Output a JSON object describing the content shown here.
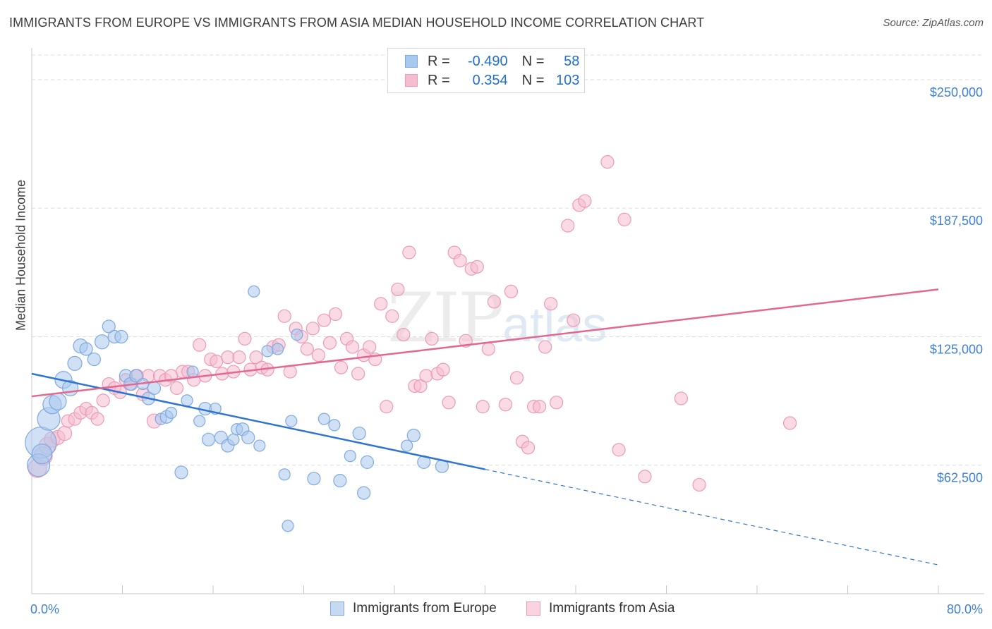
{
  "title": "IMMIGRANTS FROM EUROPE VS IMMIGRANTS FROM ASIA MEDIAN HOUSEHOLD INCOME CORRELATION CHART",
  "source": "Source: ZipAtlas.com",
  "watermark": {
    "zip": "ZIP",
    "atlas": "atlas"
  },
  "legend": {
    "rows": [
      {
        "r_label": "R =",
        "r_value": "-0.490",
        "n_label": "N =",
        "n_value": "58"
      },
      {
        "r_label": "R =",
        "r_value": "0.354",
        "n_label": "N =",
        "n_value": "103"
      }
    ]
  },
  "bottom_legend": [
    "Immigrants from Europe",
    "Immigrants from Asia"
  ],
  "colors": {
    "blue_fill": "#a9c8ee",
    "blue_stroke": "#7fa9de",
    "blue_line": "#2f74d0",
    "pink_fill": "#f6bcd0",
    "pink_stroke": "#ec9ab7",
    "pink_line": "#e3678f",
    "tick_label": "#3f7fd4",
    "grid": "#dddddd"
  },
  "chart_data": {
    "type": "scatter",
    "title": "IMMIGRANTS FROM EUROPE VS IMMIGRANTS FROM ASIA MEDIAN HOUSEHOLD INCOME CORRELATION CHART",
    "xlabel": "",
    "ylabel": "Median Household Income",
    "xlim": [
      0,
      80
    ],
    "ylim": [
      0,
      262000
    ],
    "x_tick_labels": [
      "0.0%",
      "80.0%"
    ],
    "y_ticks": [
      62500,
      125000,
      187500,
      250000
    ],
    "y_tick_labels": [
      "$62,500",
      "$125,000",
      "$187,500",
      "$250,000"
    ],
    "series": [
      {
        "name": "Immigrants from Europe",
        "r": -0.49,
        "n": 58,
        "trend": {
          "x0": 0,
          "y0": 107000,
          "x1": 40,
          "y1": 60500,
          "dash_to_x": 80,
          "dash_to_y": 14000
        },
        "points": [
          [
            0.8,
            73500,
            22
          ],
          [
            0.6,
            62500,
            16
          ],
          [
            0.9,
            68000,
            14
          ],
          [
            1.5,
            85000,
            16
          ],
          [
            1.8,
            92000,
            13
          ],
          [
            2.3,
            93500,
            12
          ],
          [
            2.8,
            104000,
            12
          ],
          [
            3.4,
            100000,
            11
          ],
          [
            3.8,
            112000,
            10
          ],
          [
            4.3,
            120500,
            10
          ],
          [
            4.8,
            119000,
            9
          ],
          [
            5.5,
            114000,
            9
          ],
          [
            6.2,
            122500,
            10
          ],
          [
            6.8,
            130000,
            9
          ],
          [
            7.3,
            125000,
            9
          ],
          [
            7.9,
            125000,
            9
          ],
          [
            8.3,
            106000,
            9
          ],
          [
            8.7,
            102000,
            9
          ],
          [
            9.2,
            106000,
            9
          ],
          [
            9.8,
            102000,
            8
          ],
          [
            10.3,
            95000,
            9
          ],
          [
            10.8,
            100000,
            9
          ],
          [
            11.4,
            85000,
            8
          ],
          [
            11.9,
            86000,
            9
          ],
          [
            12.3,
            88000,
            8
          ],
          [
            13.2,
            59000,
            9
          ],
          [
            13.7,
            94000,
            8
          ],
          [
            14.2,
            108000,
            8
          ],
          [
            14.8,
            84000,
            8
          ],
          [
            15.3,
            90000,
            9
          ],
          [
            15.6,
            75000,
            9
          ],
          [
            16.2,
            90000,
            8
          ],
          [
            16.7,
            76000,
            9
          ],
          [
            17.3,
            72000,
            9
          ],
          [
            17.8,
            75000,
            8
          ],
          [
            18.1,
            80000,
            8
          ],
          [
            18.6,
            80000,
            9
          ],
          [
            19.1,
            76000,
            9
          ],
          [
            19.6,
            147000,
            8
          ],
          [
            20.1,
            72000,
            8
          ],
          [
            20.8,
            118000,
            8
          ],
          [
            21.7,
            119000,
            8
          ],
          [
            22.3,
            58000,
            8
          ],
          [
            22.6,
            33000,
            8
          ],
          [
            22.9,
            84000,
            8
          ],
          [
            23.4,
            126000,
            8
          ],
          [
            24.9,
            56000,
            9
          ],
          [
            25.8,
            85000,
            8
          ],
          [
            26.7,
            82000,
            8
          ],
          [
            27.2,
            55000,
            9
          ],
          [
            28.1,
            67000,
            8
          ],
          [
            28.9,
            78000,
            9
          ],
          [
            29.3,
            49000,
            9
          ],
          [
            29.6,
            64000,
            9
          ],
          [
            33.1,
            72000,
            8
          ],
          [
            33.7,
            77000,
            9
          ],
          [
            34.6,
            64000,
            9
          ],
          [
            36.2,
            62000,
            9
          ]
        ]
      },
      {
        "name": "Immigrants from Asia",
        "r": 0.354,
        "n": 103,
        "trend": {
          "x0": 0,
          "y0": 96000,
          "x1": 80,
          "y1": 148000
        },
        "points": [
          [
            0.5,
            61000,
            13
          ],
          [
            1.0,
            67000,
            13
          ],
          [
            1.4,
            72000,
            12
          ],
          [
            1.8,
            75000,
            11
          ],
          [
            2.3,
            76000,
            10
          ],
          [
            2.9,
            78000,
            10
          ],
          [
            3.2,
            84000,
            9
          ],
          [
            3.8,
            85000,
            9
          ],
          [
            4.3,
            88000,
            9
          ],
          [
            4.8,
            90000,
            9
          ],
          [
            5.3,
            88000,
            9
          ],
          [
            5.8,
            85000,
            9
          ],
          [
            6.3,
            94000,
            9
          ],
          [
            6.8,
            102000,
            9
          ],
          [
            7.3,
            100000,
            9
          ],
          [
            7.8,
            98000,
            9
          ],
          [
            8.3,
            104000,
            9
          ],
          [
            8.8,
            102000,
            9
          ],
          [
            9.3,
            106000,
            9
          ],
          [
            9.8,
            97000,
            9
          ],
          [
            10.3,
            106000,
            9
          ],
          [
            10.8,
            84000,
            10
          ],
          [
            11.3,
            106000,
            9
          ],
          [
            11.8,
            104000,
            9
          ],
          [
            12.3,
            106000,
            9
          ],
          [
            12.8,
            100000,
            9
          ],
          [
            13.3,
            108000,
            9
          ],
          [
            13.8,
            108000,
            9
          ],
          [
            14.3,
            104000,
            9
          ],
          [
            14.8,
            121000,
            9
          ],
          [
            15.3,
            106000,
            9
          ],
          [
            15.8,
            114000,
            9
          ],
          [
            16.3,
            113000,
            9
          ],
          [
            16.8,
            107000,
            9
          ],
          [
            17.3,
            115000,
            9
          ],
          [
            17.8,
            108000,
            9
          ],
          [
            18.3,
            115000,
            9
          ],
          [
            18.8,
            124000,
            9
          ],
          [
            19.3,
            109000,
            9
          ],
          [
            19.8,
            115000,
            9
          ],
          [
            20.3,
            110000,
            9
          ],
          [
            20.8,
            109000,
            9
          ],
          [
            21.3,
            120000,
            9
          ],
          [
            21.8,
            121000,
            9
          ],
          [
            22.3,
            135000,
            9
          ],
          [
            22.8,
            108000,
            9
          ],
          [
            23.3,
            129000,
            9
          ],
          [
            23.8,
            125000,
            9
          ],
          [
            24.3,
            119000,
            9
          ],
          [
            24.8,
            129000,
            9
          ],
          [
            25.3,
            116000,
            9
          ],
          [
            25.8,
            133000,
            9
          ],
          [
            26.3,
            122000,
            9
          ],
          [
            26.8,
            136000,
            9
          ],
          [
            27.3,
            110000,
            9
          ],
          [
            27.8,
            124000,
            9
          ],
          [
            28.3,
            120000,
            9
          ],
          [
            28.8,
            107000,
            9
          ],
          [
            29.3,
            116000,
            9
          ],
          [
            29.8,
            120000,
            9
          ],
          [
            30.3,
            114000,
            9
          ],
          [
            30.8,
            141000,
            9
          ],
          [
            31.3,
            91000,
            9
          ],
          [
            31.8,
            135000,
            9
          ],
          [
            32.3,
            148000,
            9
          ],
          [
            32.8,
            126000,
            9
          ],
          [
            33.3,
            166000,
            9
          ],
          [
            33.8,
            101000,
            9
          ],
          [
            34.3,
            101000,
            9
          ],
          [
            34.8,
            106000,
            9
          ],
          [
            35.3,
            124000,
            9
          ],
          [
            35.8,
            107000,
            9
          ],
          [
            36.3,
            109000,
            9
          ],
          [
            36.8,
            93000,
            9
          ],
          [
            37.3,
            166000,
            9
          ],
          [
            37.8,
            162000,
            9
          ],
          [
            38.3,
            123000,
            9
          ],
          [
            38.8,
            158000,
            9
          ],
          [
            39.3,
            159000,
            9
          ],
          [
            39.8,
            91000,
            9
          ],
          [
            40.3,
            119000,
            9
          ],
          [
            40.8,
            142000,
            9
          ],
          [
            41.8,
            92000,
            9
          ],
          [
            42.3,
            147000,
            9
          ],
          [
            42.8,
            105000,
            9
          ],
          [
            43.3,
            74000,
            9
          ],
          [
            43.8,
            71000,
            9
          ],
          [
            44.3,
            91000,
            9
          ],
          [
            44.8,
            91000,
            9
          ],
          [
            45.3,
            120000,
            9
          ],
          [
            45.8,
            141000,
            9
          ],
          [
            46.3,
            93000,
            9
          ],
          [
            47.3,
            179000,
            9
          ],
          [
            47.8,
            133000,
            9
          ],
          [
            48.3,
            189000,
            9
          ],
          [
            48.8,
            191000,
            9
          ],
          [
            50.8,
            210000,
            9
          ],
          [
            51.8,
            70000,
            9
          ],
          [
            52.3,
            182000,
            9
          ],
          [
            54.1,
            57000,
            9
          ],
          [
            57.3,
            95000,
            9
          ],
          [
            58.9,
            53000,
            9
          ],
          [
            66.9,
            83000,
            9
          ]
        ]
      }
    ]
  }
}
